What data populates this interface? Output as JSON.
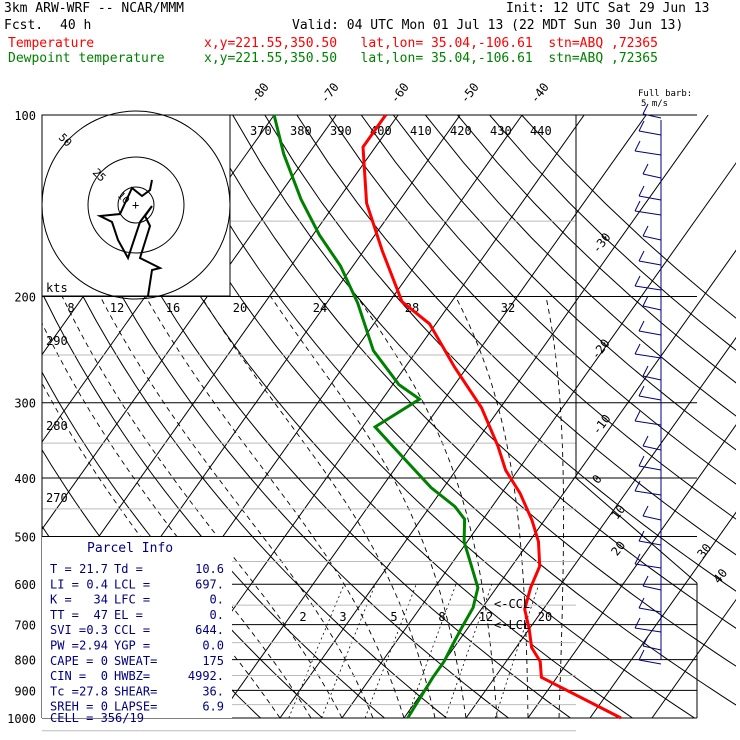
{
  "header": {
    "model": "3km ARW-WRF -- NCAR/MMM",
    "init": "Init: 12 UTC Sat 29 Jun 13",
    "fcst_label": "Fcst.",
    "fcst_value": "40 h",
    "valid": "Valid: 04 UTC Mon 01 Jul 13 (22 MDT Sun 30 Jun 13)",
    "lines": [
      {
        "name": "Temperature",
        "loc": "x,y=221.55,350.50   lat,lon= 35.04,-106.61  stn=ABQ ,72365",
        "color": "#ff0000"
      },
      {
        "name": "Dewpoint temperature",
        "loc": "x,y=221.55,350.50   lat,lon= 35.04,-106.61  stn=ABQ ,72365",
        "color": "#008000"
      }
    ]
  },
  "chart_data": {
    "type": "skew-t",
    "pressure_levels": [
      "100",
      "200",
      "300",
      "400",
      "500",
      "600",
      "700",
      "800",
      "900",
      "1000"
    ],
    "pressure_values": [
      100,
      200,
      300,
      400,
      500,
      600,
      700,
      800,
      900,
      1000
    ],
    "isotherm_labels_top": [
      "-80",
      "-70",
      "-60",
      "-50",
      "-40"
    ],
    "isotherm_labels_right": [
      "-30",
      "-20",
      "-10",
      "0",
      "10",
      "20",
      "30",
      "40"
    ],
    "theta_labels": [
      "370",
      "380",
      "390",
      "400",
      "410",
      "420",
      "430",
      "440"
    ],
    "theta_left_labels": [
      "290",
      "280",
      "270"
    ],
    "mixing_ratio_labels": [
      "2",
      "3",
      "5",
      "8",
      "12",
      "20"
    ],
    "hodograph": {
      "speed_label": "kts",
      "x_ticks": [
        "8",
        "12",
        "16",
        "20",
        "24",
        "28",
        "32"
      ],
      "ring_labels": [
        "50",
        "25",
        "10"
      ]
    },
    "temperature_series": {
      "name": "Temperature",
      "color": "#ff0000",
      "points": [
        [
          1000,
          45
        ],
        [
          856,
          27.5
        ],
        [
          806,
          25.5
        ],
        [
          764,
          22.5
        ],
        [
          712,
          20
        ],
        [
          660,
          17
        ],
        [
          608,
          15.5
        ],
        [
          560,
          14.5
        ],
        [
          510,
          11.5
        ],
        [
          470,
          8
        ],
        [
          424,
          3
        ],
        [
          388,
          -2
        ],
        [
          354,
          -6
        ],
        [
          306,
          -13
        ],
        [
          262,
          -22
        ],
        [
          222,
          -31
        ],
        [
          204,
          -38
        ],
        [
          168,
          -47
        ],
        [
          140,
          -55
        ],
        [
          113,
          -62
        ],
        [
          104,
          -62
        ],
        [
          100,
          -62
        ]
      ]
    },
    "dewpoint_series": {
      "name": "Dewpoint temperature",
      "color": "#008000",
      "points": [
        [
          1000,
          10.6
        ],
        [
          856,
          10
        ],
        [
          806,
          10
        ],
        [
          760,
          9.5
        ],
        [
          712,
          9
        ],
        [
          656,
          8.5
        ],
        [
          608,
          7
        ],
        [
          560,
          3.5
        ],
        [
          510,
          -0.5
        ],
        [
          468,
          -3
        ],
        [
          446,
          -6
        ],
        [
          415,
          -12
        ],
        [
          354,
          -23
        ],
        [
          329,
          -28
        ],
        [
          296,
          -24
        ],
        [
          280,
          -29
        ],
        [
          246,
          -37
        ],
        [
          205,
          -45
        ],
        [
          178,
          -52
        ],
        [
          158,
          -59
        ],
        [
          138,
          -66
        ],
        [
          116,
          -74
        ],
        [
          100,
          -80
        ]
      ]
    },
    "markers": [
      "CCL",
      "LCL"
    ],
    "wind_legend": [
      "Full barb:",
      "5 m/s"
    ],
    "parcel_info": {
      "title": "Parcel Info",
      "rows": [
        [
          "T =",
          "21.7",
          "Td =",
          "10.6"
        ],
        [
          "LI =",
          "0.4",
          "LCL =",
          "697."
        ],
        [
          "K =",
          "34",
          "LFC =",
          "0."
        ],
        [
          "TT =",
          "47",
          "EL =",
          "0."
        ],
        [
          "SVI =",
          "0.3",
          "CCL =",
          "644."
        ],
        [
          "PW =",
          "2.94",
          "YGP =",
          "0.0"
        ],
        [
          "CAPE =",
          "0",
          "SWEAT=",
          "175"
        ],
        [
          "CIN =",
          "0",
          "HWBZ=",
          "4992."
        ],
        [
          "Tc =",
          "27.8",
          "SHEAR=",
          "36."
        ],
        [
          "SREH =",
          "0",
          "LAPSE=",
          "6.9"
        ]
      ],
      "cell_label": "CELL = 356/19"
    }
  }
}
